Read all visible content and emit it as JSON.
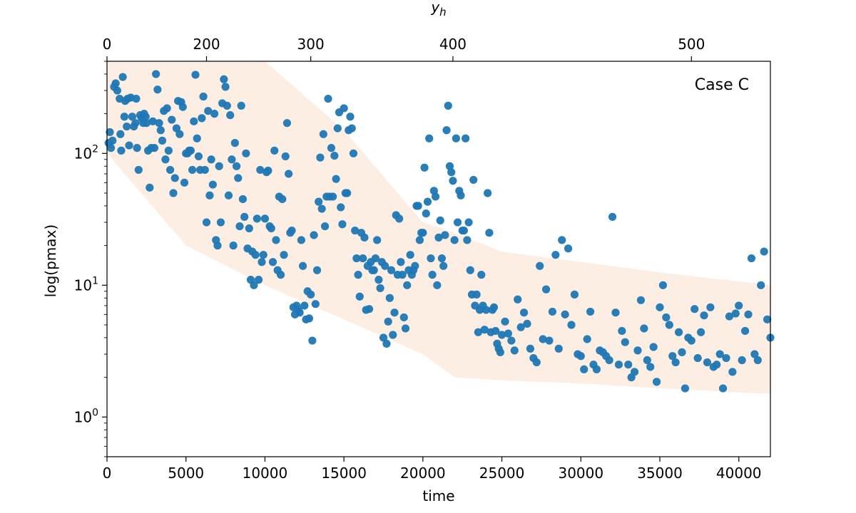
{
  "chart_data": {
    "type": "scatter",
    "title": "",
    "xlabel": "time",
    "ylabel": "log(pmax)",
    "top_xlabel": "y_h",
    "annotation": "Case C",
    "xlim": [
      0,
      42000
    ],
    "ylim": [
      0.5,
      500
    ],
    "yscale": "log",
    "grid": false,
    "x_ticks": [
      0,
      5000,
      10000,
      15000,
      20000,
      25000,
      30000,
      35000,
      40000
    ],
    "x_tick_labels": [
      "0",
      "5000",
      "10000",
      "15000",
      "20000",
      "25000",
      "30000",
      "35000",
      "40000"
    ],
    "y_ticks": [
      1,
      10,
      100
    ],
    "y_tick_labels": [
      "10^0",
      "10^1",
      "10^2"
    ],
    "top_ticks": [
      0,
      200,
      300,
      400,
      500
    ],
    "top_tick_positions_time": [
      0,
      6300,
      12900,
      21900,
      37000
    ],
    "top_tick_labels": [
      "0",
      "200",
      "300",
      "400",
      "500"
    ],
    "colors": {
      "point": "#1f77b4",
      "band": "#fdeee3"
    },
    "band": {
      "x": [
        0,
        5000,
        10000,
        15000,
        20000,
        22000,
        25000,
        30000,
        35000,
        42000
      ],
      "upper": [
        500,
        500,
        500,
        150,
        30,
        25,
        18,
        15,
        12.5,
        10
      ],
      "lower": [
        100,
        20,
        10,
        5.5,
        3.0,
        2.0,
        1.9,
        1.8,
        1.65,
        1.5
      ]
    },
    "points": [
      [
        100,
        120
      ],
      [
        180,
        145
      ],
      [
        250,
        110
      ],
      [
        350,
        125
      ],
      [
        450,
        320
      ],
      [
        550,
        340
      ],
      [
        650,
        300
      ],
      [
        800,
        260
      ],
      [
        850,
        140
      ],
      [
        900,
        105
      ],
      [
        1000,
        380
      ],
      [
        1100,
        190
      ],
      [
        1150,
        250
      ],
      [
        1250,
        160
      ],
      [
        1300,
        260
      ],
      [
        1400,
        115
      ],
      [
        1500,
        265
      ],
      [
        1600,
        190
      ],
      [
        1700,
        160
      ],
      [
        1800,
        170
      ],
      [
        1850,
        260
      ],
      [
        1900,
        110
      ],
      [
        2000,
        75
      ],
      [
        2100,
        195
      ],
      [
        2200,
        185
      ],
      [
        2300,
        170
      ],
      [
        2350,
        200
      ],
      [
        2450,
        190
      ],
      [
        2500,
        170
      ],
      [
        2600,
        105
      ],
      [
        2700,
        55
      ],
      [
        2800,
        110
      ],
      [
        2900,
        175
      ],
      [
        3000,
        110
      ],
      [
        3100,
        400
      ],
      [
        3200,
        305
      ],
      [
        3300,
        170
      ],
      [
        3400,
        150
      ],
      [
        3500,
        125
      ],
      [
        3600,
        210
      ],
      [
        3700,
        90
      ],
      [
        3800,
        220
      ],
      [
        3900,
        105
      ],
      [
        4000,
        75
      ],
      [
        4100,
        180
      ],
      [
        4200,
        50
      ],
      [
        4300,
        65
      ],
      [
        4400,
        155
      ],
      [
        4500,
        250
      ],
      [
        4600,
        140
      ],
      [
        4700,
        245
      ],
      [
        4800,
        225
      ],
      [
        4900,
        60
      ],
      [
        5000,
        100
      ],
      [
        5100,
        100
      ],
      [
        5200,
        105
      ],
      [
        5300,
        105
      ],
      [
        5400,
        75
      ],
      [
        5500,
        175
      ],
      [
        5600,
        395
      ],
      [
        5700,
        130
      ],
      [
        5800,
        95
      ],
      [
        5900,
        75
      ],
      [
        6000,
        185
      ],
      [
        6100,
        270
      ],
      [
        6200,
        75
      ],
      [
        6300,
        30
      ],
      [
        6400,
        210
      ],
      [
        6500,
        48
      ],
      [
        6600,
        90
      ],
      [
        6700,
        58
      ],
      [
        6800,
        200
      ],
      [
        6900,
        22
      ],
      [
        7000,
        20
      ],
      [
        7100,
        80
      ],
      [
        7200,
        30
      ],
      [
        7300,
        240
      ],
      [
        7400,
        365
      ],
      [
        7500,
        320
      ],
      [
        7600,
        230
      ],
      [
        7700,
        48
      ],
      [
        7800,
        195
      ],
      [
        7900,
        90
      ],
      [
        8000,
        20
      ],
      [
        8100,
        120
      ],
      [
        8200,
        80
      ],
      [
        8300,
        65
      ],
      [
        8400,
        28
      ],
      [
        8500,
        230
      ],
      [
        8600,
        45
      ],
      [
        8700,
        33
      ],
      [
        8800,
        100
      ],
      [
        8900,
        19
      ],
      [
        9000,
        27
      ],
      [
        9100,
        11
      ],
      [
        9200,
        18
      ],
      [
        9300,
        10
      ],
      [
        9400,
        17
      ],
      [
        9500,
        32
      ],
      [
        9600,
        11
      ],
      [
        9700,
        75
      ],
      [
        9800,
        15
      ],
      [
        9900,
        17
      ],
      [
        10000,
        32
      ],
      [
        10100,
        72
      ],
      [
        10200,
        74
      ],
      [
        10300,
        28
      ],
      [
        10400,
        27
      ],
      [
        10500,
        15
      ],
      [
        10600,
        105
      ],
      [
        10700,
        22
      ],
      [
        10800,
        13
      ],
      [
        10900,
        47
      ],
      [
        11000,
        12
      ],
      [
        11100,
        45
      ],
      [
        11200,
        17
      ],
      [
        11300,
        95
      ],
      [
        11400,
        170
      ],
      [
        11500,
        70
      ],
      [
        11600,
        25
      ],
      [
        11700,
        26
      ],
      [
        11800,
        6.8
      ],
      [
        11900,
        6.0
      ],
      [
        12000,
        7.0
      ],
      [
        12100,
        6.5
      ],
      [
        12200,
        6.2
      ],
      [
        12300,
        22
      ],
      [
        12400,
        14
      ],
      [
        12500,
        7.0
      ],
      [
        12600,
        5.5
      ],
      [
        12700,
        9.0
      ],
      [
        12800,
        5.6
      ],
      [
        12900,
        8.5
      ],
      [
        13000,
        3.8
      ],
      [
        13100,
        24
      ],
      [
        13200,
        7.2
      ],
      [
        13300,
        13
      ],
      [
        13400,
        43
      ],
      [
        13500,
        93
      ],
      [
        13600,
        38
      ],
      [
        13700,
        140
      ],
      [
        13800,
        28
      ],
      [
        13900,
        47
      ],
      [
        14000,
        260
      ],
      [
        14100,
        47
      ],
      [
        14200,
        110
      ],
      [
        14300,
        47
      ],
      [
        14400,
        96
      ],
      [
        14500,
        64
      ],
      [
        14600,
        155
      ],
      [
        14700,
        205
      ],
      [
        14800,
        39
      ],
      [
        14900,
        29
      ],
      [
        15000,
        220
      ],
      [
        15100,
        50
      ],
      [
        15200,
        50
      ],
      [
        15300,
        150
      ],
      [
        15400,
        190
      ],
      [
        15500,
        155
      ],
      [
        15600,
        100
      ],
      [
        15700,
        26
      ],
      [
        15800,
        16
      ],
      [
        15900,
        12
      ],
      [
        16000,
        8.2
      ],
      [
        16100,
        25
      ],
      [
        16200,
        16
      ],
      [
        16300,
        23
      ],
      [
        16400,
        6.5
      ],
      [
        16500,
        14
      ],
      [
        16600,
        6.6
      ],
      [
        16700,
        15
      ],
      [
        16800,
        13
      ],
      [
        16900,
        13
      ],
      [
        17000,
        16
      ],
      [
        17100,
        22
      ],
      [
        17200,
        11
      ],
      [
        17300,
        9.5
      ],
      [
        17400,
        15
      ],
      [
        17500,
        4.0
      ],
      [
        17600,
        14
      ],
      [
        17700,
        3.6
      ],
      [
        17800,
        5.3
      ],
      [
        17900,
        8.0
      ],
      [
        18000,
        13
      ],
      [
        18100,
        4.2
      ],
      [
        18200,
        6.2
      ],
      [
        18300,
        34
      ],
      [
        18400,
        12
      ],
      [
        18500,
        32
      ],
      [
        18600,
        15
      ],
      [
        18700,
        12
      ],
      [
        18800,
        5.7
      ],
      [
        18900,
        4.7
      ],
      [
        19000,
        10
      ],
      [
        19100,
        13
      ],
      [
        19200,
        17
      ],
      [
        19300,
        12
      ],
      [
        19400,
        13
      ],
      [
        19500,
        14
      ],
      [
        19600,
        40
      ],
      [
        19700,
        40
      ],
      [
        19800,
        22
      ],
      [
        19900,
        25
      ],
      [
        20000,
        25
      ],
      [
        20100,
        78
      ],
      [
        20200,
        35
      ],
      [
        20300,
        43
      ],
      [
        20400,
        130
      ],
      [
        20500,
        16
      ],
      [
        20600,
        12
      ],
      [
        20700,
        52
      ],
      [
        20800,
        47
      ],
      [
        20900,
        10
      ],
      [
        21000,
        23
      ],
      [
        21100,
        31
      ],
      [
        21200,
        16
      ],
      [
        21300,
        14
      ],
      [
        21400,
        24
      ],
      [
        21500,
        150
      ],
      [
        21600,
        230
      ],
      [
        21700,
        80
      ],
      [
        21800,
        72
      ],
      [
        21900,
        62
      ],
      [
        22000,
        22
      ],
      [
        22100,
        130
      ],
      [
        22200,
        30
      ],
      [
        22300,
        52
      ],
      [
        22400,
        48
      ],
      [
        22500,
        26
      ],
      [
        22600,
        26
      ],
      [
        22700,
        130
      ],
      [
        22800,
        22
      ],
      [
        22900,
        30
      ],
      [
        23000,
        13
      ],
      [
        23100,
        8.5
      ],
      [
        23200,
        63
      ],
      [
        23300,
        7.0
      ],
      [
        23400,
        8.5
      ],
      [
        23500,
        4.4
      ],
      [
        23600,
        6.5
      ],
      [
        23700,
        12
      ],
      [
        23800,
        7.0
      ],
      [
        23900,
        4.6
      ],
      [
        24000,
        6.5
      ],
      [
        24100,
        50
      ],
      [
        24200,
        25
      ],
      [
        24300,
        4.4
      ],
      [
        24400,
        6.5
      ],
      [
        24500,
        6.8
      ],
      [
        24600,
        4.5
      ],
      [
        24700,
        3.6
      ],
      [
        24800,
        3.3
      ],
      [
        24900,
        3.1
      ],
      [
        25000,
        4.2
      ],
      [
        25200,
        5.3
      ],
      [
        25400,
        4.3
      ],
      [
        25600,
        3.8
      ],
      [
        25800,
        3.2
      ],
      [
        26000,
        7.8
      ],
      [
        26200,
        4.8
      ],
      [
        26400,
        6.2
      ],
      [
        26600,
        5.1
      ],
      [
        26800,
        3.3
      ],
      [
        27000,
        2.8
      ],
      [
        27200,
        2.6
      ],
      [
        27400,
        14
      ],
      [
        27600,
        3.9
      ],
      [
        27800,
        9.3
      ],
      [
        28000,
        3.8
      ],
      [
        28200,
        6.3
      ],
      [
        28400,
        17
      ],
      [
        28600,
        3.3
      ],
      [
        28800,
        22
      ],
      [
        29000,
        6.0
      ],
      [
        29200,
        19
      ],
      [
        29400,
        5.0
      ],
      [
        29600,
        8.5
      ],
      [
        29800,
        3.0
      ],
      [
        30000,
        2.9
      ],
      [
        30200,
        2.3
      ],
      [
        30400,
        3.9
      ],
      [
        30600,
        6.3
      ],
      [
        30800,
        2.5
      ],
      [
        31000,
        2.3
      ],
      [
        31200,
        3.2
      ],
      [
        31400,
        3.1
      ],
      [
        31600,
        2.9
      ],
      [
        31800,
        2.7
      ],
      [
        32000,
        33
      ],
      [
        32200,
        6.2
      ],
      [
        32400,
        2.5
      ],
      [
        32600,
        4.5
      ],
      [
        32800,
        3.7
      ],
      [
        33000,
        2.5
      ],
      [
        33200,
        2.0
      ],
      [
        33400,
        2.2
      ],
      [
        33600,
        3.2
      ],
      [
        33800,
        7.7
      ],
      [
        34000,
        4.7
      ],
      [
        34200,
        2.7
      ],
      [
        34400,
        2.4
      ],
      [
        34600,
        3.4
      ],
      [
        34800,
        1.85
      ],
      [
        35000,
        6.8
      ],
      [
        35200,
        10
      ],
      [
        35400,
        5.7
      ],
      [
        35600,
        5.0
      ],
      [
        35800,
        2.9
      ],
      [
        36000,
        2.6
      ],
      [
        36200,
        4.4
      ],
      [
        36400,
        3.1
      ],
      [
        36600,
        1.65
      ],
      [
        36800,
        4.0
      ],
      [
        37000,
        3.8
      ],
      [
        37200,
        6.6
      ],
      [
        37400,
        2.8
      ],
      [
        37600,
        4.4
      ],
      [
        37800,
        5.9
      ],
      [
        38000,
        2.6
      ],
      [
        38200,
        6.8
      ],
      [
        38400,
        2.4
      ],
      [
        38600,
        2.5
      ],
      [
        38800,
        3.0
      ],
      [
        39000,
        1.65
      ],
      [
        39200,
        2.8
      ],
      [
        39400,
        5.8
      ],
      [
        39600,
        2.2
      ],
      [
        39800,
        6.1
      ],
      [
        40000,
        7.0
      ],
      [
        40200,
        2.7
      ],
      [
        40400,
        4.5
      ],
      [
        40600,
        6.0
      ],
      [
        40800,
        16
      ],
      [
        41000,
        3.0
      ],
      [
        41200,
        2.7
      ],
      [
        41400,
        10
      ],
      [
        41600,
        18
      ],
      [
        41800,
        5.5
      ],
      [
        42000,
        4.0
      ]
    ]
  }
}
